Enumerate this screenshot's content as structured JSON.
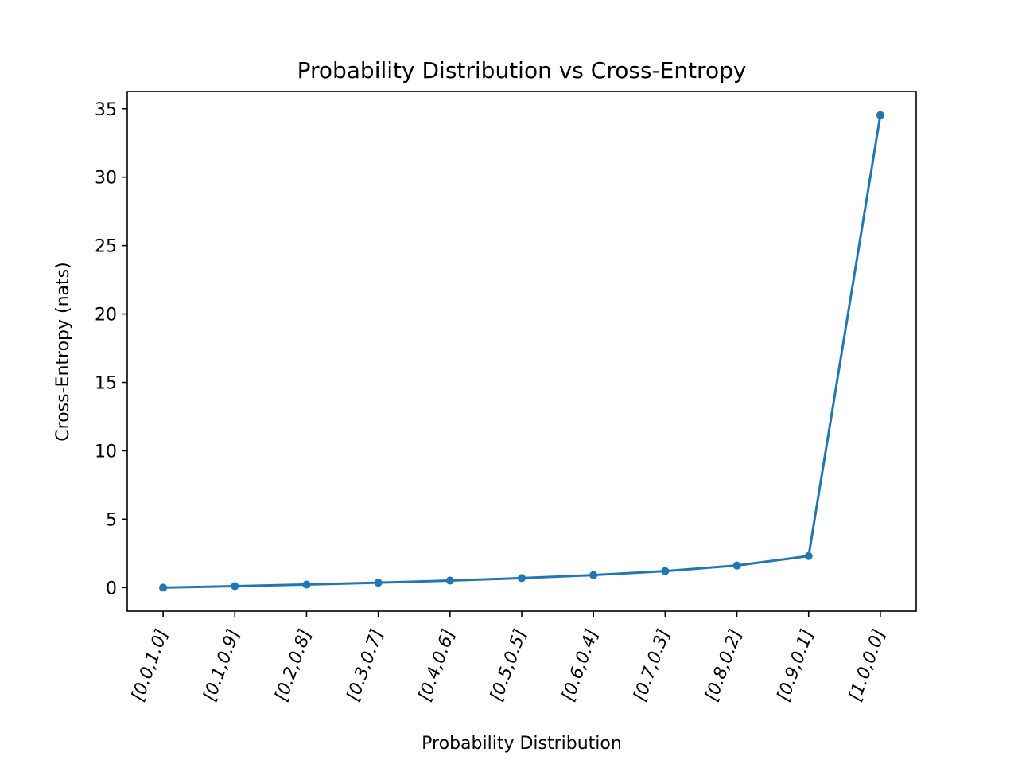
{
  "chart_data": {
    "type": "line",
    "title": "Probability Distribution vs Cross-Entropy",
    "xlabel": "Probability Distribution",
    "ylabel": "Cross-Entropy (nats)",
    "categories": [
      "[0.0,1.0]",
      "[0.1,0.9]",
      "[0.2,0.8]",
      "[0.3,0.7]",
      "[0.4,0.6]",
      "[0.5,0.5]",
      "[0.6,0.4]",
      "[0.7,0.3]",
      "[0.8,0.2]",
      "[0.9,0.1]",
      "[1.0,0.0]"
    ],
    "series": [
      {
        "name": "Cross-Entropy",
        "color": "#1f77b4",
        "values": [
          0.0,
          0.105,
          0.223,
          0.357,
          0.511,
          0.693,
          0.916,
          1.204,
          1.609,
          2.303,
          34.539
        ]
      }
    ],
    "ylim": [
      -1.727,
      36.266
    ],
    "yticks": [
      0,
      5,
      10,
      15,
      20,
      25,
      30,
      35
    ],
    "grid": false,
    "legend": "none"
  }
}
